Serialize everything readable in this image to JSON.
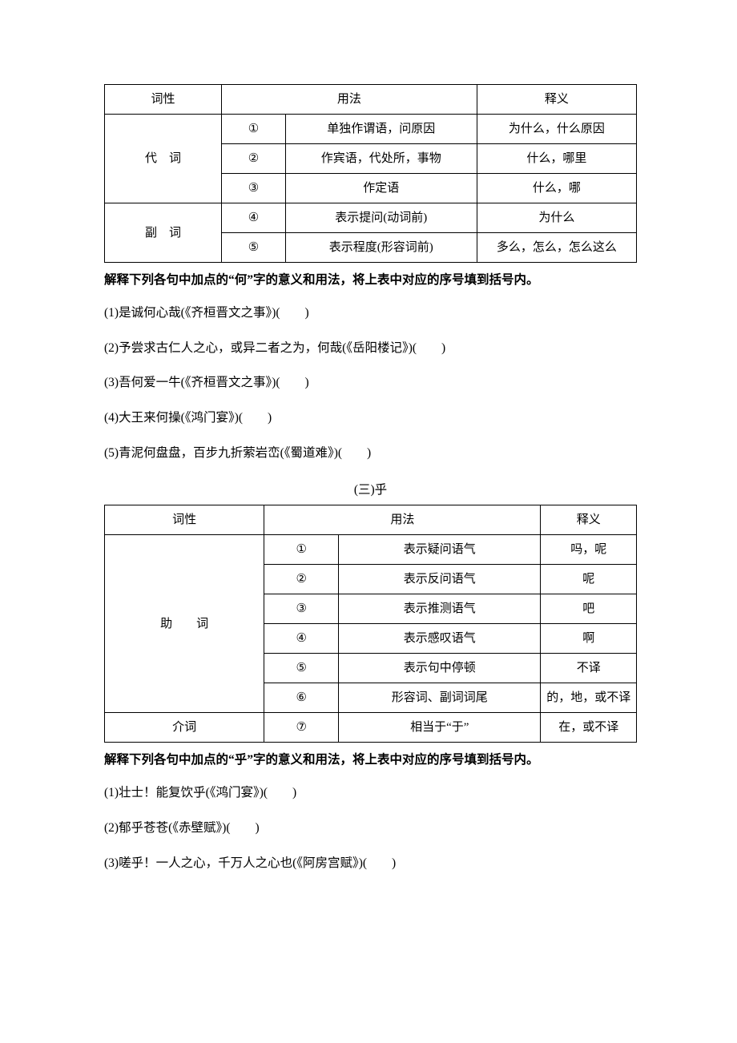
{
  "table1": {
    "headers": [
      "词性",
      "用法",
      "释义"
    ],
    "groups": [
      {
        "label": "代　词",
        "rows": [
          {
            "num": "①",
            "usage": "单独作谓语，问原因",
            "meaning": "为什么，什么原因"
          },
          {
            "num": "②",
            "usage": "作宾语，代处所，事物",
            "meaning": "什么，哪里"
          },
          {
            "num": "③",
            "usage": "作定语",
            "meaning": "什么，哪"
          }
        ]
      },
      {
        "label": "副　词",
        "rows": [
          {
            "num": "④",
            "usage": "表示提问(动词前)",
            "meaning": "为什么"
          },
          {
            "num": "⑤",
            "usage": "表示程度(形容词前)",
            "meaning": "多么，怎么，怎么这么"
          }
        ]
      }
    ]
  },
  "instr1": "解释下列各句中加点的“何”字的意义和用法，将上表中对应的序号填到括号内。",
  "q1": [
    "(1)是诚何心哉(《齐桓晋文之事》)(　　)",
    "(2)予尝求古仁人之心，或异二者之为，何哉(《岳阳楼记》)(　　)",
    "(3)吾何爱一牛(《齐桓晋文之事》)(　　)",
    "(4)大王来何操(《鸿门宴》)(　　)",
    "(5)青泥何盘盘，百步九折萦岩峦(《蜀道难》)(　　)"
  ],
  "section2_title": "(三)乎",
  "table2": {
    "headers": [
      "词性",
      "用法",
      "释义"
    ],
    "groups": [
      {
        "label": "助　　词",
        "rows": [
          {
            "num": "①",
            "usage": "表示疑问语气",
            "meaning": "吗，呢"
          },
          {
            "num": "②",
            "usage": "表示反问语气",
            "meaning": "呢"
          },
          {
            "num": "③",
            "usage": "表示推测语气",
            "meaning": "吧"
          },
          {
            "num": "④",
            "usage": "表示感叹语气",
            "meaning": "啊"
          },
          {
            "num": "⑤",
            "usage": "表示句中停顿",
            "meaning": "不译"
          },
          {
            "num": "⑥",
            "usage": "形容词、副词词尾",
            "meaning": "的，地，或不译"
          }
        ]
      },
      {
        "label": "介词",
        "rows": [
          {
            "num": "⑦",
            "usage": "相当于“于”",
            "meaning": "在，或不译"
          }
        ]
      }
    ]
  },
  "instr2": "解释下列各句中加点的“乎”字的意义和用法，将上表中对应的序号填到括号内。",
  "q2": [
    "(1)壮士！能复饮乎(《鸿门宴》)(　　)",
    "(2)郁乎苍苍(《赤壁赋》)(　　)",
    "(3)嗟乎！一人之心，千万人之心也(《阿房宫赋》)(　　)"
  ]
}
